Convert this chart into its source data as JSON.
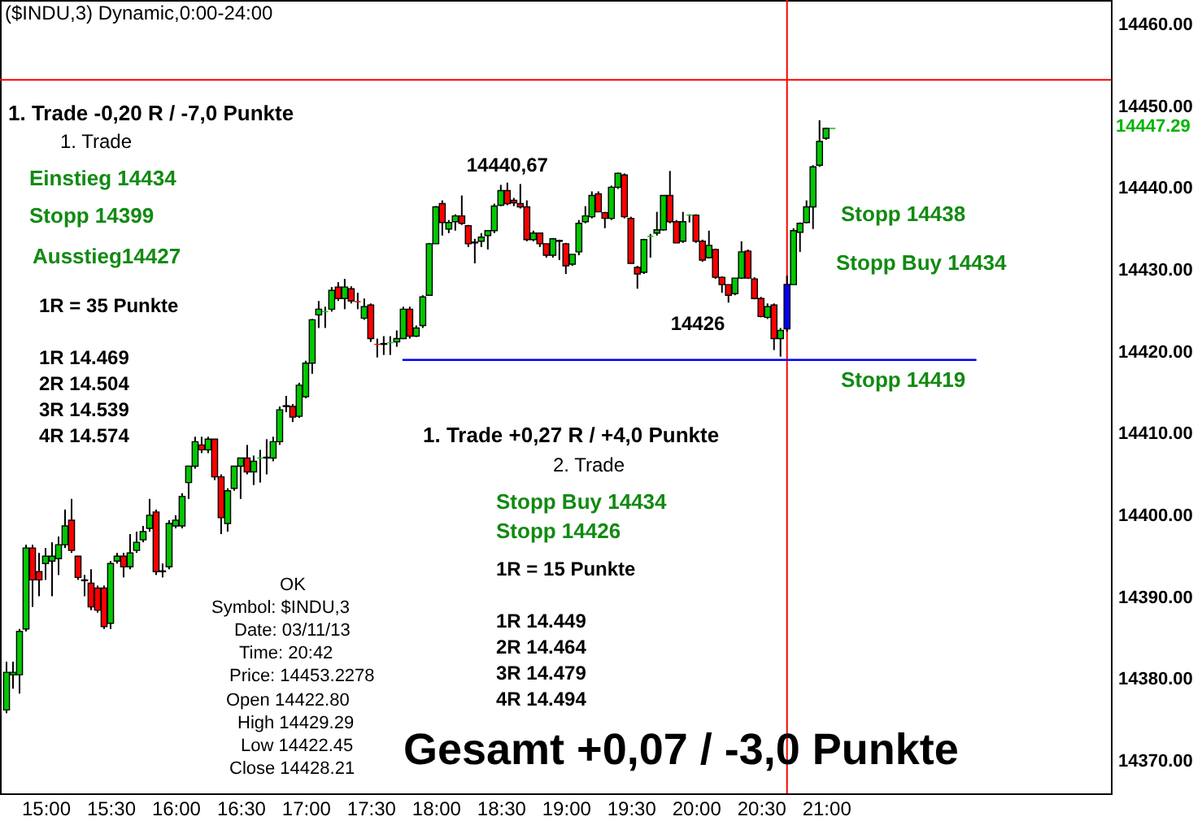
{
  "chart_data": {
    "type": "candlestick",
    "title": "($INDU,3) Dynamic,0:00-24:00",
    "x": [
      14.7,
      14.75,
      14.8,
      14.85,
      14.9,
      14.95,
      15,
      15.05,
      15.1,
      15.15,
      15.2,
      15.25,
      15.3,
      15.35,
      15.4,
      15.45,
      15.5,
      15.55,
      15.6,
      15.65,
      15.7,
      15.75,
      15.8,
      15.85,
      15.9,
      15.95,
      16,
      16.05,
      16.1,
      16.15,
      16.2,
      16.25,
      16.3,
      16.35,
      16.4,
      16.45,
      16.5,
      16.55,
      16.6,
      16.65,
      16.7,
      16.75,
      16.8,
      16.85,
      16.9,
      16.95,
      17,
      17.05,
      17.1,
      17.15,
      17.2,
      17.25,
      17.3,
      17.35,
      17.4,
      17.45,
      17.5,
      17.55,
      17.6,
      17.65,
      17.7,
      17.75,
      17.8,
      17.85,
      17.9,
      17.95,
      18,
      18.05,
      18.1,
      18.15,
      18.2,
      18.25,
      18.3,
      18.35,
      18.4,
      18.45,
      18.5,
      18.55,
      18.6,
      18.65,
      18.7,
      18.75,
      18.8,
      18.85,
      18.9,
      18.95,
      19,
      19.05,
      19.1,
      19.15,
      19.2,
      19.25,
      19.3,
      19.35,
      19.4,
      19.45,
      19.5,
      19.55,
      19.6,
      19.65,
      19.7,
      19.75,
      19.8,
      19.85,
      19.9,
      19.95,
      20,
      20.05,
      20.1,
      20.15,
      20.2,
      20.25,
      20.3,
      20.35,
      20.4,
      20.45,
      20.5,
      20.55,
      20.6,
      20.65,
      20.7,
      20.75,
      20.8,
      20.85,
      20.9,
      20.95,
      21,
      21.05
    ],
    "ohlc": [
      [
        14376.2,
        14382.1,
        14375.8,
        14380.8
      ],
      [
        14380.5,
        14382.1,
        14378.8,
        14380.8
      ],
      [
        14380.5,
        14386.1,
        14378.2,
        14385.8
      ],
      [
        14386.1,
        14396.4,
        14385.8,
        14396.0
      ],
      [
        14396.0,
        14396.4,
        14388.8,
        14392.1
      ],
      [
        14393.1,
        14395.4,
        14390.1,
        14392.1
      ],
      [
        14394.1,
        14396.0,
        14392.1,
        14395.0
      ],
      [
        14394.4,
        14396.7,
        14390.1,
        14395.0
      ],
      [
        14394.7,
        14397.4,
        14392.7,
        14396.4
      ],
      [
        14396.4,
        14400.7,
        14396.0,
        14398.7
      ],
      [
        14399.4,
        14402.0,
        14395.4,
        14395.7
      ],
      [
        14395.0,
        14395.0,
        14392.1,
        14392.4
      ],
      [
        14392.1,
        14392.7,
        14390.1,
        14392.0
      ],
      [
        14391.7,
        14393.4,
        14388.4,
        14388.8
      ],
      [
        14391.1,
        14391.4,
        14388.1,
        14388.4
      ],
      [
        14391.1,
        14391.4,
        14386.1,
        14386.4
      ],
      [
        14386.8,
        14394.4,
        14386.1,
        14394.1
      ],
      [
        14394.4,
        14395.4,
        14394.1,
        14395.0
      ],
      [
        14395.0,
        14395.4,
        14392.4,
        14393.7
      ],
      [
        14393.7,
        14397.7,
        14393.4,
        14395.4
      ],
      [
        14395.7,
        14398.0,
        14395.4,
        14396.7
      ],
      [
        14397.0,
        14398.7,
        14396.7,
        14398.0
      ],
      [
        14398.4,
        14402.0,
        14398.0,
        14400.0
      ],
      [
        14400.4,
        14400.7,
        14392.7,
        14393.1
      ],
      [
        14393.1,
        14394.1,
        14392.4,
        14393.2
      ],
      [
        14393.7,
        14399.4,
        14393.4,
        14399.0
      ],
      [
        14398.7,
        14400.0,
        14398.4,
        14399.4
      ],
      [
        14398.7,
        14402.7,
        14398.4,
        14402.3
      ],
      [
        14404.0,
        14406.0,
        14402.0,
        14406.0
      ],
      [
        14406.0,
        14409.6,
        14405.7,
        14409.0
      ],
      [
        14408.6,
        14409.6,
        14407.6,
        14408.0
      ],
      [
        14408.0,
        14409.6,
        14407.6,
        14409.3
      ],
      [
        14409.3,
        14409.3,
        14404.3,
        14404.7
      ],
      [
        14404.7,
        14405.0,
        14397.7,
        14399.7
      ],
      [
        14399.0,
        14403.3,
        14398.0,
        14403.0
      ],
      [
        14403.3,
        14406.0,
        14403.0,
        14406.0
      ],
      [
        14406.0,
        14407.0,
        14402.0,
        14407.0
      ],
      [
        14407.0,
        14408.6,
        14405.0,
        14405.3
      ],
      [
        14405.3,
        14407.3,
        14403.7,
        14406.6
      ],
      [
        14407.0,
        14408.0,
        14404.0,
        14407.0
      ],
      [
        14407.1,
        14409.3,
        14405.0,
        14407.0
      ],
      [
        14407.0,
        14409.6,
        14406.6,
        14409.0
      ],
      [
        14409.0,
        14413.3,
        14408.6,
        14412.9
      ],
      [
        14413.3,
        14414.6,
        14412.6,
        14413.4
      ],
      [
        14413.3,
        14413.6,
        14411.4,
        14412.0
      ],
      [
        14412.1,
        14416.2,
        14411.9,
        14415.9
      ],
      [
        14414.5,
        14418.9,
        14414.3,
        14418.6
      ],
      [
        14418.6,
        14424.0,
        14417.3,
        14423.9
      ],
      [
        14424.5,
        14426.2,
        14422.9,
        14425.2
      ],
      [
        14424.9,
        14425.5,
        14422.9,
        14424.9
      ],
      [
        14425.2,
        14427.9,
        14424.9,
        14427.5
      ],
      [
        14427.9,
        14428.5,
        14426.2,
        14426.5
      ],
      [
        14426.5,
        14428.9,
        14425.2,
        14427.9
      ],
      [
        14427.7,
        14428.0,
        14425.9,
        14426.2
      ],
      [
        14426.1,
        14427.2,
        14425.2,
        14426.1
      ],
      [
        14424.1,
        14426.5,
        14423.9,
        14425.5
      ],
      [
        14425.7,
        14425.9,
        14421.2,
        14421.6
      ],
      [
        14420.9,
        14421.6,
        14419.3,
        14420.9
      ],
      [
        14420.9,
        14421.9,
        14419.6,
        14421.0
      ],
      [
        14421.1,
        14421.9,
        14419.6,
        14421.1
      ],
      [
        14421.2,
        14422.6,
        14420.6,
        14421.6
      ],
      [
        14421.6,
        14425.5,
        14421.6,
        14425.2
      ],
      [
        14425.2,
        14425.5,
        14421.6,
        14421.9
      ],
      [
        14421.9,
        14423.2,
        14421.8,
        14422.9
      ],
      [
        14423.2,
        14426.9,
        14422.9,
        14426.7
      ],
      [
        14426.9,
        14433.3,
        14426.9,
        14433.2
      ],
      [
        14433.2,
        14437.8,
        14433.2,
        14437.7
      ],
      [
        14438.1,
        14438.5,
        14434.2,
        14435.8
      ],
      [
        14435.0,
        14436.1,
        14434.5,
        14435.8
      ],
      [
        14435.9,
        14436.8,
        14434.8,
        14436.6
      ],
      [
        14436.6,
        14439.1,
        14435.5,
        14435.7
      ],
      [
        14435.4,
        14435.5,
        14432.8,
        14433.2
      ],
      [
        14433.3,
        14433.8,
        14430.8,
        14433.4
      ],
      [
        14433.5,
        14434.5,
        14432.8,
        14434.0
      ],
      [
        14434.2,
        14434.8,
        14432.5,
        14434.8
      ],
      [
        14434.8,
        14438.1,
        14434.5,
        14437.8
      ],
      [
        14437.9,
        14440.4,
        14437.8,
        14439.7
      ],
      [
        14439.7,
        14440.67,
        14437.9,
        14438.1
      ],
      [
        14438.5,
        14438.8,
        14437.8,
        14438.2
      ],
      [
        14438.1,
        14440.5,
        14437.5,
        14437.7
      ],
      [
        14437.7,
        14438.5,
        14433.5,
        14433.7
      ],
      [
        14433.7,
        14434.8,
        14433.5,
        14434.5
      ],
      [
        14434.5,
        14434.5,
        14432.8,
        14433.2
      ],
      [
        14433.2,
        14433.2,
        14431.5,
        14431.8
      ],
      [
        14431.8,
        14433.9,
        14431.5,
        14433.8
      ],
      [
        14433.6,
        14433.7,
        14431.2,
        14433.5
      ],
      [
        14433.2,
        14433.3,
        14429.5,
        14430.5
      ],
      [
        14430.7,
        14431.9,
        14430.5,
        14431.9
      ],
      [
        14432.2,
        14436.1,
        14431.8,
        14435.7
      ],
      [
        14435.9,
        14437.8,
        14435.7,
        14436.6
      ],
      [
        14436.5,
        14439.6,
        14436.3,
        14439.1
      ],
      [
        14439.3,
        14439.6,
        14437.1,
        14437.1
      ],
      [
        14437.0,
        14437.1,
        14435.1,
        14436.3
      ],
      [
        14436.3,
        14440.3,
        14436.1,
        14440.1
      ],
      [
        14440.1,
        14441.9,
        14439.9,
        14441.8
      ],
      [
        14441.6,
        14441.8,
        14436.3,
        14436.5
      ],
      [
        14436.3,
        14436.5,
        14430.8,
        14430.8
      ],
      [
        14430.3,
        14430.5,
        14427.7,
        14429.5
      ],
      [
        14429.7,
        14433.8,
        14429.5,
        14433.7
      ],
      [
        14434.1,
        14434.4,
        14431.5,
        14434.1
      ],
      [
        14434.5,
        14437.1,
        14434.2,
        14434.9
      ],
      [
        14434.9,
        14439.1,
        14434.8,
        14439.1
      ],
      [
        14439.1,
        14442.1,
        14435.7,
        14435.9
      ],
      [
        14435.9,
        14436.1,
        14433.3,
        14433.3
      ],
      [
        14433.5,
        14437.1,
        14433.3,
        14435.9
      ],
      [
        14436.7,
        14436.8,
        14435.8,
        14436.7
      ],
      [
        14436.7,
        14436.8,
        14433.3,
        14433.5
      ],
      [
        14433.5,
        14433.7,
        14431.0,
        14431.2
      ],
      [
        14431.5,
        14434.8,
        14431.4,
        14433.0
      ],
      [
        14432.5,
        14432.6,
        14428.9,
        14429.1
      ],
      [
        14429.1,
        14429.2,
        14427.2,
        14428.2
      ],
      [
        14428.2,
        14428.2,
        14426.0,
        14426.9
      ],
      [
        14427.1,
        14429.0,
        14426.9,
        14429.0
      ],
      [
        14429.0,
        14433.5,
        14428.9,
        14432.2
      ],
      [
        14432.3,
        14432.5,
        14428.9,
        14429.0
      ],
      [
        14428.9,
        14429.1,
        14426.4,
        14426.5
      ],
      [
        14426.5,
        14426.7,
        14424.2,
        14424.3
      ],
      [
        14424.2,
        14425.9,
        14424.0,
        14425.5
      ],
      [
        14425.7,
        14425.9,
        14420.2,
        14421.6
      ],
      [
        14421.6,
        14422.9,
        14419.4,
        14422.6
      ],
      [
        14422.8,
        14429.29,
        14422.45,
        14428.21
      ],
      [
        14428.2,
        14435.1,
        14428.2,
        14434.8
      ],
      [
        14434.6,
        14435.8,
        14432.2,
        14435.7
      ],
      [
        14435.8,
        14438.5,
        14435.7,
        14437.7
      ],
      [
        14437.7,
        14442.8,
        14435.0,
        14442.6
      ],
      [
        14442.8,
        14448.3,
        14442.6,
        14445.7
      ],
      [
        14446.1,
        14447.4,
        14445.9,
        14447.3
      ],
      [
        14447.29,
        14447.29,
        14447.29,
        14447.29
      ]
    ],
    "colors": [
      "#00c800",
      "#00c800",
      "#00c800",
      "#00c800",
      "#ff0000",
      "#ff0000",
      "#00c800",
      "#00c800",
      "#00c800",
      "#00c800",
      "#ff0000",
      "#ff0000",
      "#ff0000",
      "#ff0000",
      "#ff0000",
      "#ff0000",
      "#00c800",
      "#00c800",
      "#ff0000",
      "#00c800",
      "#00c800",
      "#00c800",
      "#00c800",
      "#ff0000",
      "#00c800",
      "#00c800",
      "#00c800",
      "#00c800",
      "#00c800",
      "#00c800",
      "#ff0000",
      "#00c800",
      "#ff0000",
      "#ff0000",
      "#00c800",
      "#00c800",
      "#00c800",
      "#ff0000",
      "#00c800",
      "#00c800",
      "#ff0000",
      "#00c800",
      "#00c800",
      "#00c800",
      "#ff0000",
      "#00c800",
      "#00c800",
      "#00c800",
      "#00c800",
      "#00c800",
      "#00c800",
      "#ff0000",
      "#00c800",
      "#ff0000",
      "#ff0000",
      "#00c800",
      "#ff0000",
      "#ff0000",
      "#00c800",
      "#00c800",
      "#00c800",
      "#00c800",
      "#ff0000",
      "#00c800",
      "#00c800",
      "#00c800",
      "#00c800",
      "#ff0000",
      "#00c800",
      "#00c800",
      "#ff0000",
      "#ff0000",
      "#00c800",
      "#00c800",
      "#00c800",
      "#00c800",
      "#00c800",
      "#ff0000",
      "#ff0000",
      "#ff0000",
      "#ff0000",
      "#00c800",
      "#ff0000",
      "#ff0000",
      "#00c800",
      "#ff0000",
      "#ff0000",
      "#00c800",
      "#00c800",
      "#00c800",
      "#00c800",
      "#ff0000",
      "#ff0000",
      "#00c800",
      "#00c800",
      "#ff0000",
      "#ff0000",
      "#ff0000",
      "#00c800",
      "#00c800",
      "#00c800",
      "#00c800",
      "#ff0000",
      "#ff0000",
      "#00c800",
      "#00c800",
      "#ff0000",
      "#ff0000",
      "#00c800",
      "#ff0000",
      "#ff0000",
      "#ff0000",
      "#00c800",
      "#00c800",
      "#ff0000",
      "#ff0000",
      "#ff0000",
      "#00c800",
      "#ff0000",
      "#00c800",
      "#0000ff",
      "#00c800",
      "#00c800",
      "#00c800",
      "#00c800",
      "#00c800",
      "#00c800",
      "#00c800"
    ],
    "series": [
      {
        "type": "line",
        "x": [
          17.75,
          22.15
        ],
        "values": [
          14419,
          14419
        ],
        "color": "#0000ff"
      }
    ],
    "ref_lines": [
      {
        "axis": "x",
        "value": 20.7,
        "color": "#ff0000"
      },
      {
        "axis": "y",
        "value": 14453.2278,
        "color": "#ff0000"
      }
    ],
    "xlim": [
      14.65,
      23.19
    ],
    "xticks": [
      {
        "value": 15,
        "label": "15:00"
      },
      {
        "value": 15.5,
        "label": "15:30"
      },
      {
        "value": 16,
        "label": "16:00"
      },
      {
        "value": 16.5,
        "label": "16:30"
      },
      {
        "value": 17,
        "label": "17:00"
      },
      {
        "value": 17.5,
        "label": "17:30"
      },
      {
        "value": 18,
        "label": "18:00"
      },
      {
        "value": 18.5,
        "label": "18:30"
      },
      {
        "value": 19,
        "label": "19:00"
      },
      {
        "value": 19.5,
        "label": "19:30"
      },
      {
        "value": 20,
        "label": "20:00"
      },
      {
        "value": 20.5,
        "label": "20:30"
      },
      {
        "value": 21,
        "label": "21:00"
      }
    ],
    "ylim": [
      14366,
      14463
    ],
    "yticks": [
      {
        "value": 14370,
        "label": "14370.00"
      },
      {
        "value": 14380,
        "label": "14380.00"
      },
      {
        "value": 14390,
        "label": "14390.00"
      },
      {
        "value": 14400,
        "label": "14400.00"
      },
      {
        "value": 14410,
        "label": "14410.00"
      },
      {
        "value": 14420,
        "label": "14420.00"
      },
      {
        "value": 14430,
        "label": "14430.00"
      },
      {
        "value": 14440,
        "label": "14440.00"
      },
      {
        "value": 14450,
        "label": "14450.00"
      },
      {
        "value": 14460,
        "label": "14460.00"
      }
    ],
    "annotations": [
      "1. Trade -0,20 R / -7,0 Punkte",
      "1. Trade",
      "Einstieg 14434",
      "Stopp 14399",
      "Ausstieg14427",
      "1R = 35 Punkte",
      "1R 14.469",
      "2R 14.504",
      "3R 14.539",
      "4R 14.574",
      {
        "text": "14440,67",
        "x": 18.55,
        "y": 14440.67
      },
      "14426",
      "Stopp 14438",
      "Stopp Buy 14434",
      "Stopp 14419",
      "1. Trade +0,27 R / +4,0 Punkte",
      "2. Trade",
      "Stopp Buy 14434",
      "Stopp 14426",
      "1R = 15 Punkte",
      "1R 14.449",
      "2R 14.464",
      "3R 14.479",
      "4R 14.494",
      "Gesamt +0,07 / -3,0 Punkte",
      "OK",
      "Symbol: $INDU,3",
      "Date: 03/11/13",
      "Time: 20:42",
      "Price: 14453.2278",
      "Open 14422.80",
      "High 14429.29",
      "Low 14422.45",
      "Close 14428.21",
      "14447.29"
    ]
  }
}
